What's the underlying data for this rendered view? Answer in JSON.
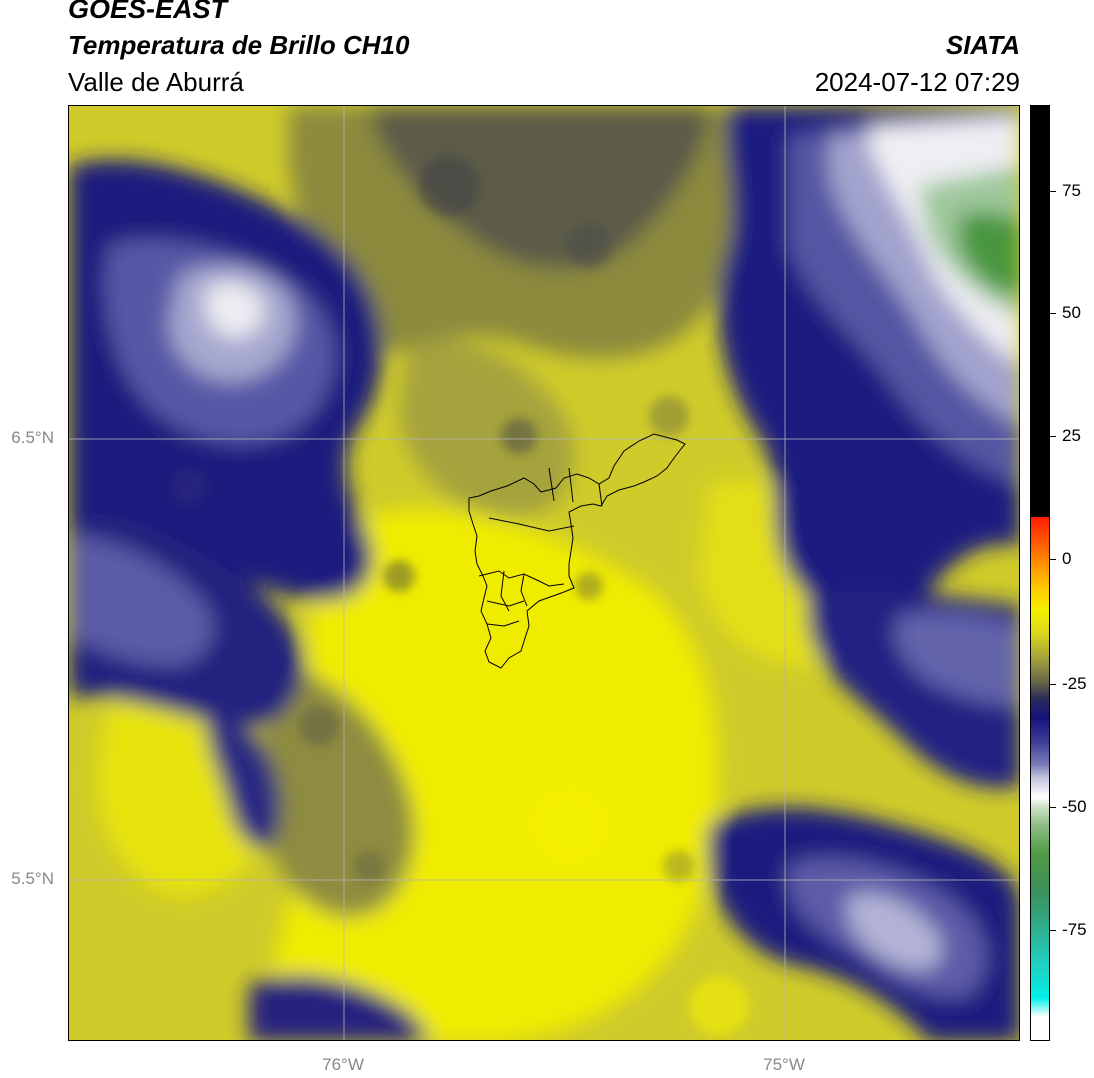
{
  "header": {
    "satellite": "GOES-EAST",
    "product": "Temperatura de Brillo CH10",
    "region": "Valle de Aburrá",
    "organization": "SIATA",
    "datetime": "2024-07-12 07:29"
  },
  "map": {
    "lat_ticks": [
      "6.5°N",
      "5.5°N"
    ],
    "lon_ticks": [
      "76°W",
      "75°W"
    ],
    "colors": {
      "yellow_bright": "#f4f000",
      "yellow": "#dfdb1c",
      "olive": "#a9a73a",
      "olive_dark": "#6f6d3e",
      "gray_dark": "#4f5050",
      "navy": "#1c1a7e",
      "blue_mid": "#4d4ea0",
      "lavender": "#9a9bc8",
      "white": "#f2f2f2",
      "green_light": "#9cc79c",
      "green": "#4d9a44",
      "boundary": "#000000",
      "grid": "#b5b5b5"
    }
  },
  "colorbar": {
    "labels": [
      "75",
      "50",
      "25",
      "0",
      "-25",
      "-50",
      "-75"
    ],
    "values": [
      75,
      50,
      25,
      0,
      -25,
      -50,
      -75
    ]
  }
}
